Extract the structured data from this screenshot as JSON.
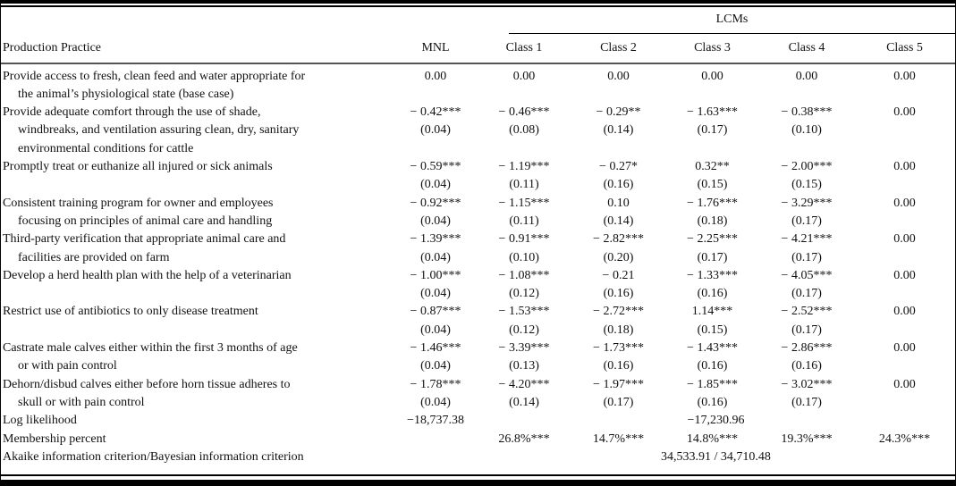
{
  "table": {
    "group_header": "LCMs",
    "columns": [
      "Production Practice",
      "MNL",
      "Class 1",
      "Class 2",
      "Class 3",
      "Class 4",
      "Class 5"
    ],
    "rows": [
      {
        "practice": [
          "Provide access to fresh, clean feed and water appropriate for",
          "the animal’s physiological state (base case)"
        ],
        "values": [
          {
            "coef": "0.00",
            "se": ""
          },
          {
            "coef": "0.00",
            "se": ""
          },
          {
            "coef": "0.00",
            "se": ""
          },
          {
            "coef": "0.00",
            "se": ""
          },
          {
            "coef": "0.00",
            "se": ""
          },
          {
            "coef": "0.00",
            "se": ""
          }
        ]
      },
      {
        "practice": [
          "Provide adequate comfort through the use of shade,",
          "windbreaks, and ventilation assuring clean, dry, sanitary",
          "environmental conditions for cattle"
        ],
        "values": [
          {
            "coef": "− 0.42***",
            "se": "(0.04)"
          },
          {
            "coef": "− 0.46***",
            "se": "(0.08)"
          },
          {
            "coef": "− 0.29**",
            "se": "(0.14)"
          },
          {
            "coef": "− 1.63***",
            "se": "(0.17)"
          },
          {
            "coef": "− 0.38***",
            "se": "(0.10)"
          },
          {
            "coef": "0.00",
            "se": ""
          }
        ]
      },
      {
        "practice": [
          "Promptly treat or euthanize all injured or sick animals"
        ],
        "values": [
          {
            "coef": "− 0.59***",
            "se": "(0.04)"
          },
          {
            "coef": "− 1.19***",
            "se": "(0.11)"
          },
          {
            "coef": "− 0.27*",
            "se": "(0.16)"
          },
          {
            "coef": "0.32**",
            "se": "(0.15)"
          },
          {
            "coef": "− 2.00***",
            "se": "(0.15)"
          },
          {
            "coef": "0.00",
            "se": ""
          }
        ]
      },
      {
        "practice": [
          "Consistent training program for owner and employees",
          "focusing on principles of animal care and handling"
        ],
        "values": [
          {
            "coef": "− 0.92***",
            "se": "(0.04)"
          },
          {
            "coef": "− 1.15***",
            "se": "(0.11)"
          },
          {
            "coef": "0.10",
            "se": "(0.14)"
          },
          {
            "coef": "− 1.76***",
            "se": "(0.18)"
          },
          {
            "coef": "− 3.29***",
            "se": "(0.17)"
          },
          {
            "coef": "0.00",
            "se": ""
          }
        ]
      },
      {
        "practice": [
          "Third-party verification that appropriate animal care and",
          "facilities are provided on farm"
        ],
        "values": [
          {
            "coef": "− 1.39***",
            "se": "(0.04)"
          },
          {
            "coef": "− 0.91***",
            "se": "(0.10)"
          },
          {
            "coef": "− 2.82***",
            "se": "(0.20)"
          },
          {
            "coef": "− 2.25***",
            "se": "(0.17)"
          },
          {
            "coef": "− 4.21***",
            "se": "(0.17)"
          },
          {
            "coef": "0.00",
            "se": ""
          }
        ]
      },
      {
        "practice": [
          "Develop a herd health plan with the help of a veterinarian"
        ],
        "values": [
          {
            "coef": "− 1.00***",
            "se": "(0.04)"
          },
          {
            "coef": "− 1.08***",
            "se": "(0.12)"
          },
          {
            "coef": "− 0.21",
            "se": "(0.16)"
          },
          {
            "coef": "− 1.33***",
            "se": "(0.16)"
          },
          {
            "coef": "− 4.05***",
            "se": "(0.17)"
          },
          {
            "coef": "0.00",
            "se": ""
          }
        ]
      },
      {
        "practice": [
          "Restrict use of antibiotics to only disease treatment"
        ],
        "values": [
          {
            "coef": "− 0.87***",
            "se": "(0.04)"
          },
          {
            "coef": "− 1.53***",
            "se": "(0.12)"
          },
          {
            "coef": "− 2.72***",
            "se": "(0.18)"
          },
          {
            "coef": "1.14***",
            "se": "(0.15)"
          },
          {
            "coef": "− 2.52***",
            "se": "(0.17)"
          },
          {
            "coef": "0.00",
            "se": ""
          }
        ]
      },
      {
        "practice": [
          "Castrate male calves either within the first 3 months of age",
          "or with pain control"
        ],
        "values": [
          {
            "coef": "− 1.46***",
            "se": "(0.04)"
          },
          {
            "coef": "− 3.39***",
            "se": "(0.13)"
          },
          {
            "coef": "− 1.73***",
            "se": "(0.16)"
          },
          {
            "coef": "− 1.43***",
            "se": "(0.16)"
          },
          {
            "coef": "− 2.86***",
            "se": "(0.16)"
          },
          {
            "coef": "0.00",
            "se": ""
          }
        ]
      },
      {
        "practice": [
          "Dehorn/disbud calves either before horn tissue adheres to",
          "skull or with pain control"
        ],
        "values": [
          {
            "coef": "− 1.78***",
            "se": "(0.04)"
          },
          {
            "coef": "− 4.20***",
            "se": "(0.14)"
          },
          {
            "coef": "− 1.97***",
            "se": "(0.17)"
          },
          {
            "coef": "− 1.85***",
            "se": "(0.16)"
          },
          {
            "coef": "− 3.02***",
            "se": "(0.17)"
          },
          {
            "coef": "0.00",
            "se": ""
          }
        ]
      }
    ],
    "log_likelihood": {
      "label": "Log likelihood",
      "mnl": "−18,737.38",
      "lcm": "−17,230.96"
    },
    "membership": {
      "label": "Membership percent",
      "values": [
        "26.8%***",
        "14.7%***",
        "14.8%***",
        "19.3%***",
        "24.3%***"
      ]
    },
    "aic_bic": {
      "label": "Akaike information criterion/Bayesian information criterion",
      "value": "34,533.91 / 34,710.48"
    }
  }
}
